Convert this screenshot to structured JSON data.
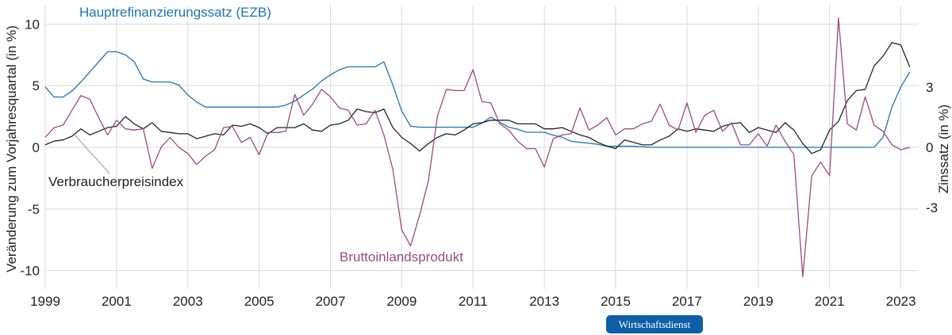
{
  "chart_data": {
    "type": "line",
    "xlabel": "",
    "ylabel": "Veränderung zum Vorjahresquartal (in %)",
    "y2label": "Zinssatz (in %)",
    "xlim": [
      1999,
      2023.5
    ],
    "ylim": [
      -11.5,
      11.5
    ],
    "y2lim": [
      -7.05,
      7.05
    ],
    "x_ticks": [
      1999,
      2001,
      2003,
      2005,
      2007,
      2009,
      2011,
      2013,
      2015,
      2017,
      2019,
      2021,
      2023
    ],
    "x_tick_labels": [
      "1999",
      "2001",
      "2003",
      "2005",
      "2007",
      "2009",
      "2011",
      "2013",
      "2015",
      "2017",
      "2019",
      "2021",
      "2023"
    ],
    "y_ticks": [
      10,
      5,
      0,
      -5,
      -10
    ],
    "y_tick_labels": [
      "10",
      "5",
      "0",
      "-5",
      "-10"
    ],
    "y2_ticks": [
      3,
      0,
      -3
    ],
    "y2_tick_labels": [
      "3",
      "0",
      "-3"
    ],
    "grid": true,
    "source_badge": "Wirtschaftsdienst",
    "series": [
      {
        "name": "Hauptrefinanzierungssatz (EZB)",
        "axis": "right",
        "color": "#1a75b5",
        "x": [
          1999.0,
          1999.25,
          1999.5,
          1999.75,
          2000.0,
          2000.25,
          2000.5,
          2000.75,
          2001.0,
          2001.25,
          2001.5,
          2001.75,
          2002.0,
          2002.25,
          2002.5,
          2002.75,
          2003.0,
          2003.25,
          2003.5,
          2003.75,
          2004.0,
          2004.5,
          2005.0,
          2005.5,
          2005.75,
          2006.0,
          2006.25,
          2006.5,
          2006.75,
          2007.0,
          2007.25,
          2007.5,
          2007.75,
          2008.0,
          2008.25,
          2008.5,
          2008.75,
          2009.0,
          2009.25,
          2009.5,
          2009.75,
          2010.0,
          2010.5,
          2011.0,
          2011.25,
          2011.5,
          2011.75,
          2012.0,
          2012.25,
          2012.5,
          2012.75,
          2013.0,
          2013.25,
          2013.5,
          2013.75,
          2014.0,
          2014.25,
          2014.5,
          2014.75,
          2015.0,
          2015.5,
          2016.0,
          2016.25,
          2016.5,
          2017.0,
          2018.0,
          2019.0,
          2020.0,
          2021.0,
          2021.5,
          2022.0,
          2022.25,
          2022.5,
          2022.75,
          2023.0,
          2023.25
        ],
        "values": [
          3.0,
          2.5,
          2.5,
          2.8,
          3.25,
          3.75,
          4.25,
          4.75,
          4.75,
          4.6,
          4.25,
          3.4,
          3.25,
          3.25,
          3.25,
          3.1,
          2.6,
          2.25,
          2.0,
          2.0,
          2.0,
          2.0,
          2.0,
          2.0,
          2.1,
          2.3,
          2.6,
          2.9,
          3.3,
          3.6,
          3.85,
          4.0,
          4.0,
          4.0,
          4.0,
          4.25,
          3.1,
          1.8,
          1.05,
          1.0,
          1.0,
          1.0,
          1.0,
          1.0,
          1.2,
          1.5,
          1.25,
          1.0,
          0.9,
          0.75,
          0.75,
          0.75,
          0.6,
          0.5,
          0.3,
          0.25,
          0.2,
          0.15,
          0.05,
          0.05,
          0.05,
          0.0,
          0.0,
          0.0,
          0.0,
          0.0,
          0.0,
          0.0,
          0.0,
          0.0,
          0.0,
          0.0,
          0.5,
          2.0,
          3.0,
          3.75
        ]
      },
      {
        "name": "Verbraucherpreisindex",
        "axis": "left",
        "color": "#222222",
        "x": [
          1999.0,
          1999.25,
          1999.5,
          1999.75,
          2000.0,
          2000.25,
          2000.5,
          2000.75,
          2001.0,
          2001.25,
          2001.5,
          2001.75,
          2002.0,
          2002.25,
          2002.5,
          2002.75,
          2003.0,
          2003.25,
          2003.5,
          2003.75,
          2004.0,
          2004.25,
          2004.5,
          2004.75,
          2005.0,
          2005.25,
          2005.5,
          2005.75,
          2006.0,
          2006.25,
          2006.5,
          2006.75,
          2007.0,
          2007.25,
          2007.5,
          2007.75,
          2008.0,
          2008.25,
          2008.5,
          2008.75,
          2009.0,
          2009.25,
          2009.5,
          2009.75,
          2010.0,
          2010.25,
          2010.5,
          2010.75,
          2011.0,
          2011.25,
          2011.5,
          2011.75,
          2012.0,
          2012.25,
          2012.5,
          2012.75,
          2013.0,
          2013.25,
          2013.5,
          2013.75,
          2014.0,
          2014.25,
          2014.5,
          2014.75,
          2015.0,
          2015.25,
          2015.5,
          2015.75,
          2016.0,
          2016.25,
          2016.5,
          2016.75,
          2017.0,
          2017.25,
          2017.5,
          2017.75,
          2018.0,
          2018.25,
          2018.5,
          2018.75,
          2019.0,
          2019.25,
          2019.5,
          2019.75,
          2020.0,
          2020.25,
          2020.5,
          2020.75,
          2021.0,
          2021.25,
          2021.5,
          2021.75,
          2022.0,
          2022.25,
          2022.5,
          2022.75,
          2023.0,
          2023.25
        ],
        "values": [
          0.2,
          0.5,
          0.6,
          0.9,
          1.5,
          1.0,
          1.3,
          1.6,
          1.7,
          2.5,
          1.9,
          1.5,
          2.0,
          1.3,
          1.2,
          1.1,
          1.1,
          0.7,
          0.9,
          1.1,
          1.0,
          1.8,
          1.7,
          1.9,
          1.6,
          1.1,
          1.6,
          1.6,
          1.6,
          1.9,
          1.4,
          1.3,
          1.8,
          1.9,
          2.2,
          3.1,
          2.9,
          2.8,
          3.1,
          1.6,
          0.8,
          0.3,
          -0.3,
          0.3,
          0.8,
          1.1,
          1.0,
          1.4,
          1.9,
          2.0,
          2.2,
          2.2,
          2.2,
          1.9,
          1.9,
          1.9,
          1.5,
          1.5,
          1.6,
          1.3,
          1.0,
          0.8,
          0.4,
          0.1,
          -0.1,
          0.6,
          0.4,
          0.2,
          0.2,
          0.6,
          0.9,
          1.5,
          1.3,
          1.5,
          1.4,
          1.3,
          1.7,
          1.9,
          2.0,
          1.2,
          1.6,
          1.4,
          1.2,
          2.0,
          1.4,
          0.3,
          -0.5,
          -0.2,
          1.4,
          2.1,
          3.8,
          4.6,
          4.7,
          6.6,
          7.4,
          8.5,
          8.3,
          6.5
        ]
      },
      {
        "name": "Bruttoinlandsprodukt",
        "axis": "left",
        "color": "#9e4a7e",
        "x": [
          1999.0,
          1999.25,
          1999.5,
          1999.75,
          2000.0,
          2000.25,
          2000.5,
          2000.75,
          2001.0,
          2001.25,
          2001.5,
          2001.75,
          2002.0,
          2002.25,
          2002.5,
          2002.75,
          2003.0,
          2003.25,
          2003.5,
          2003.75,
          2004.0,
          2004.25,
          2004.5,
          2004.75,
          2005.0,
          2005.25,
          2005.5,
          2005.75,
          2006.0,
          2006.25,
          2006.5,
          2006.75,
          2007.0,
          2007.25,
          2007.5,
          2007.75,
          2008.0,
          2008.25,
          2008.5,
          2008.75,
          2009.0,
          2009.25,
          2009.5,
          2009.75,
          2010.0,
          2010.25,
          2010.5,
          2010.75,
          2011.0,
          2011.25,
          2011.5,
          2011.75,
          2012.0,
          2012.25,
          2012.5,
          2012.75,
          2013.0,
          2013.25,
          2013.5,
          2013.75,
          2014.0,
          2014.25,
          2014.5,
          2014.75,
          2015.0,
          2015.25,
          2015.5,
          2015.75,
          2016.0,
          2016.25,
          2016.5,
          2016.75,
          2017.0,
          2017.25,
          2017.5,
          2017.75,
          2018.0,
          2018.25,
          2018.5,
          2018.75,
          2019.0,
          2019.25,
          2019.5,
          2019.75,
          2020.0,
          2020.25,
          2020.5,
          2020.75,
          2021.0,
          2021.25,
          2021.5,
          2021.75,
          2022.0,
          2022.25,
          2022.5,
          2022.75,
          2023.0,
          2023.25
        ],
        "values": [
          0.8,
          1.6,
          1.8,
          3.0,
          4.2,
          3.9,
          2.4,
          1.0,
          2.2,
          1.5,
          1.4,
          1.5,
          -1.7,
          0.0,
          0.8,
          0.0,
          -0.5,
          -1.4,
          -0.7,
          -0.2,
          1.6,
          1.7,
          0.4,
          0.8,
          -0.6,
          1.2,
          1.2,
          1.3,
          4.3,
          2.6,
          3.5,
          4.7,
          4.1,
          3.2,
          3.0,
          1.8,
          1.9,
          3.0,
          1.0,
          -1.8,
          -6.7,
          -8.0,
          -5.5,
          -2.7,
          2.5,
          4.7,
          4.6,
          4.6,
          6.3,
          3.7,
          3.6,
          1.9,
          1.4,
          0.5,
          -0.1,
          -0.1,
          -1.6,
          0.7,
          1.0,
          1.1,
          3.2,
          1.4,
          1.8,
          2.4,
          1.0,
          1.5,
          1.5,
          1.9,
          2.1,
          3.5,
          1.8,
          1.4,
          3.6,
          1.2,
          2.6,
          3.0,
          1.3,
          2.0,
          0.2,
          0.2,
          1.1,
          0.1,
          1.8,
          0.5,
          -0.6,
          -10.5,
          -2.3,
          -1.2,
          -2.3,
          10.5,
          1.9,
          1.4,
          4.1,
          1.8,
          1.3,
          0.2,
          -0.2,
          0.0
        ]
      }
    ],
    "labels": {
      "ezb": "Hauptrefinanzierungssatz (EZB)",
      "vpi": "Verbraucherpreisindex",
      "bip": "Bruttoinlandsprodukt"
    }
  }
}
